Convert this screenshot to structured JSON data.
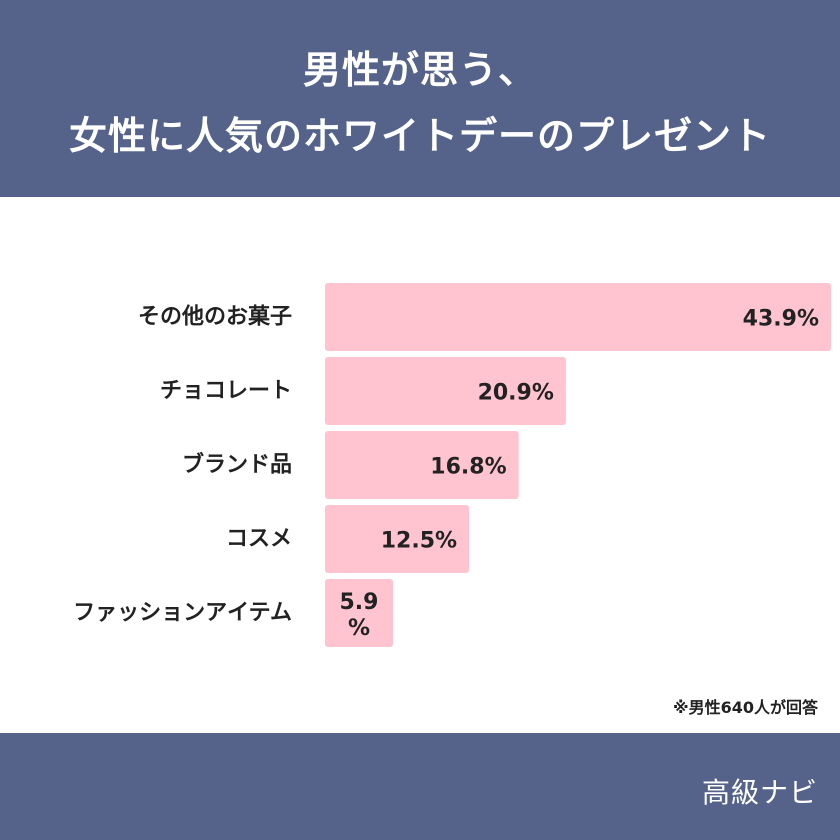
{
  "header": {
    "title_line1": "男性が思う、",
    "title_line2": "女性に人気のホワイトデーのプレゼント"
  },
  "chart_data": {
    "type": "bar",
    "orientation": "horizontal",
    "categories": [
      "その他のお菓子",
      "チョコレート",
      "ブランド品",
      "コスメ",
      "ファッションアイテム"
    ],
    "values": [
      43.9,
      20.9,
      16.8,
      12.5,
      5.9
    ],
    "value_labels": [
      "43.9%",
      "20.9%",
      "16.8%",
      "12.5%",
      "5.9%"
    ],
    "xlim": [
      0,
      43.9
    ],
    "bar_color": "#ffc4cf",
    "grid": false,
    "legend": "none"
  },
  "note": "※男性640人が回答",
  "footer": {
    "brand": "高級ナビ"
  },
  "colors": {
    "band": "#55638a",
    "bar": "#ffc4cf",
    "text": "#222222"
  }
}
